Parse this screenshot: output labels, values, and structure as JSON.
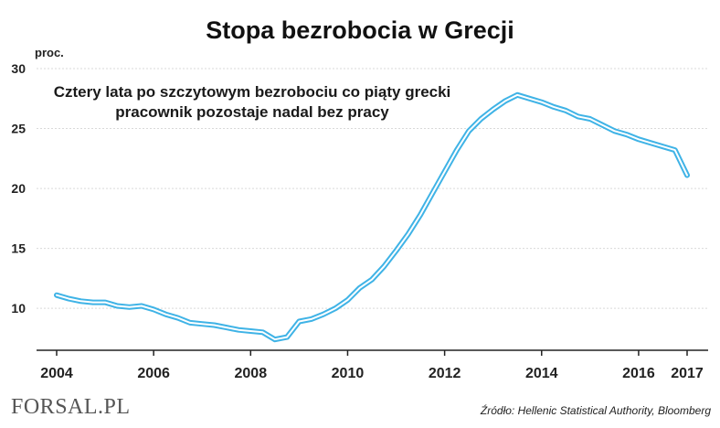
{
  "header": {
    "title": "Stopa bezrobocia w Grecji",
    "unit": "proc.",
    "subtitle_line1": "Cztery lata po szczytowym bezrobociu co piąty grecki",
    "subtitle_line2": "pracownik pozostaje nadal bez pracy"
  },
  "footer": {
    "logo": "FORSAL.PL",
    "source": "Źródło: Hellenic Statistical Authority, Bloomberg"
  },
  "colors": {
    "line_outer": "#3fb3e6",
    "line_inner": "#ffffff",
    "grid": "#d9d9d9",
    "axis": "#222222",
    "logo_bar": "#c0392b"
  },
  "chart_data": {
    "type": "line",
    "title": "Stopa bezrobocia w Grecji",
    "ylabel": "proc.",
    "xlabel": "",
    "ylim": [
      6.5,
      30
    ],
    "xlim": [
      2003.7,
      2017.3
    ],
    "y_ticks": [
      "10",
      "15",
      "20",
      "25",
      "30"
    ],
    "x_ticks": [
      "2004",
      "2006",
      "2008",
      "2010",
      "2012",
      "2014",
      "2016",
      "2017"
    ],
    "grid": "horizontal dashed",
    "series": [
      {
        "name": "",
        "points": [
          [
            2004.0,
            11.1
          ],
          [
            2004.25,
            10.8
          ],
          [
            2004.5,
            10.6
          ],
          [
            2004.75,
            10.5
          ],
          [
            2005.0,
            10.5
          ],
          [
            2005.25,
            10.2
          ],
          [
            2005.5,
            10.1
          ],
          [
            2005.75,
            10.2
          ],
          [
            2006.0,
            9.9
          ],
          [
            2006.25,
            9.5
          ],
          [
            2006.5,
            9.2
          ],
          [
            2006.75,
            8.8
          ],
          [
            2007.0,
            8.7
          ],
          [
            2007.25,
            8.6
          ],
          [
            2007.5,
            8.4
          ],
          [
            2007.75,
            8.2
          ],
          [
            2008.0,
            8.1
          ],
          [
            2008.25,
            8.0
          ],
          [
            2008.5,
            7.4
          ],
          [
            2008.75,
            7.6
          ],
          [
            2009.0,
            8.9
          ],
          [
            2009.25,
            9.1
          ],
          [
            2009.5,
            9.5
          ],
          [
            2009.75,
            10.0
          ],
          [
            2010.0,
            10.7
          ],
          [
            2010.25,
            11.7
          ],
          [
            2010.5,
            12.4
          ],
          [
            2010.75,
            13.5
          ],
          [
            2011.0,
            14.8
          ],
          [
            2011.25,
            16.2
          ],
          [
            2011.5,
            17.8
          ],
          [
            2011.75,
            19.6
          ],
          [
            2012.0,
            21.4
          ],
          [
            2012.25,
            23.2
          ],
          [
            2012.5,
            24.8
          ],
          [
            2012.75,
            25.8
          ],
          [
            2013.0,
            26.6
          ],
          [
            2013.25,
            27.3
          ],
          [
            2013.5,
            27.8
          ],
          [
            2013.75,
            27.5
          ],
          [
            2014.0,
            27.2
          ],
          [
            2014.25,
            26.8
          ],
          [
            2014.5,
            26.5
          ],
          [
            2014.75,
            26.0
          ],
          [
            2015.0,
            25.8
          ],
          [
            2015.25,
            25.3
          ],
          [
            2015.5,
            24.8
          ],
          [
            2015.75,
            24.5
          ],
          [
            2016.0,
            24.1
          ],
          [
            2016.25,
            23.8
          ],
          [
            2016.5,
            23.5
          ],
          [
            2016.75,
            23.2
          ],
          [
            2017.0,
            21.1
          ]
        ]
      }
    ]
  }
}
